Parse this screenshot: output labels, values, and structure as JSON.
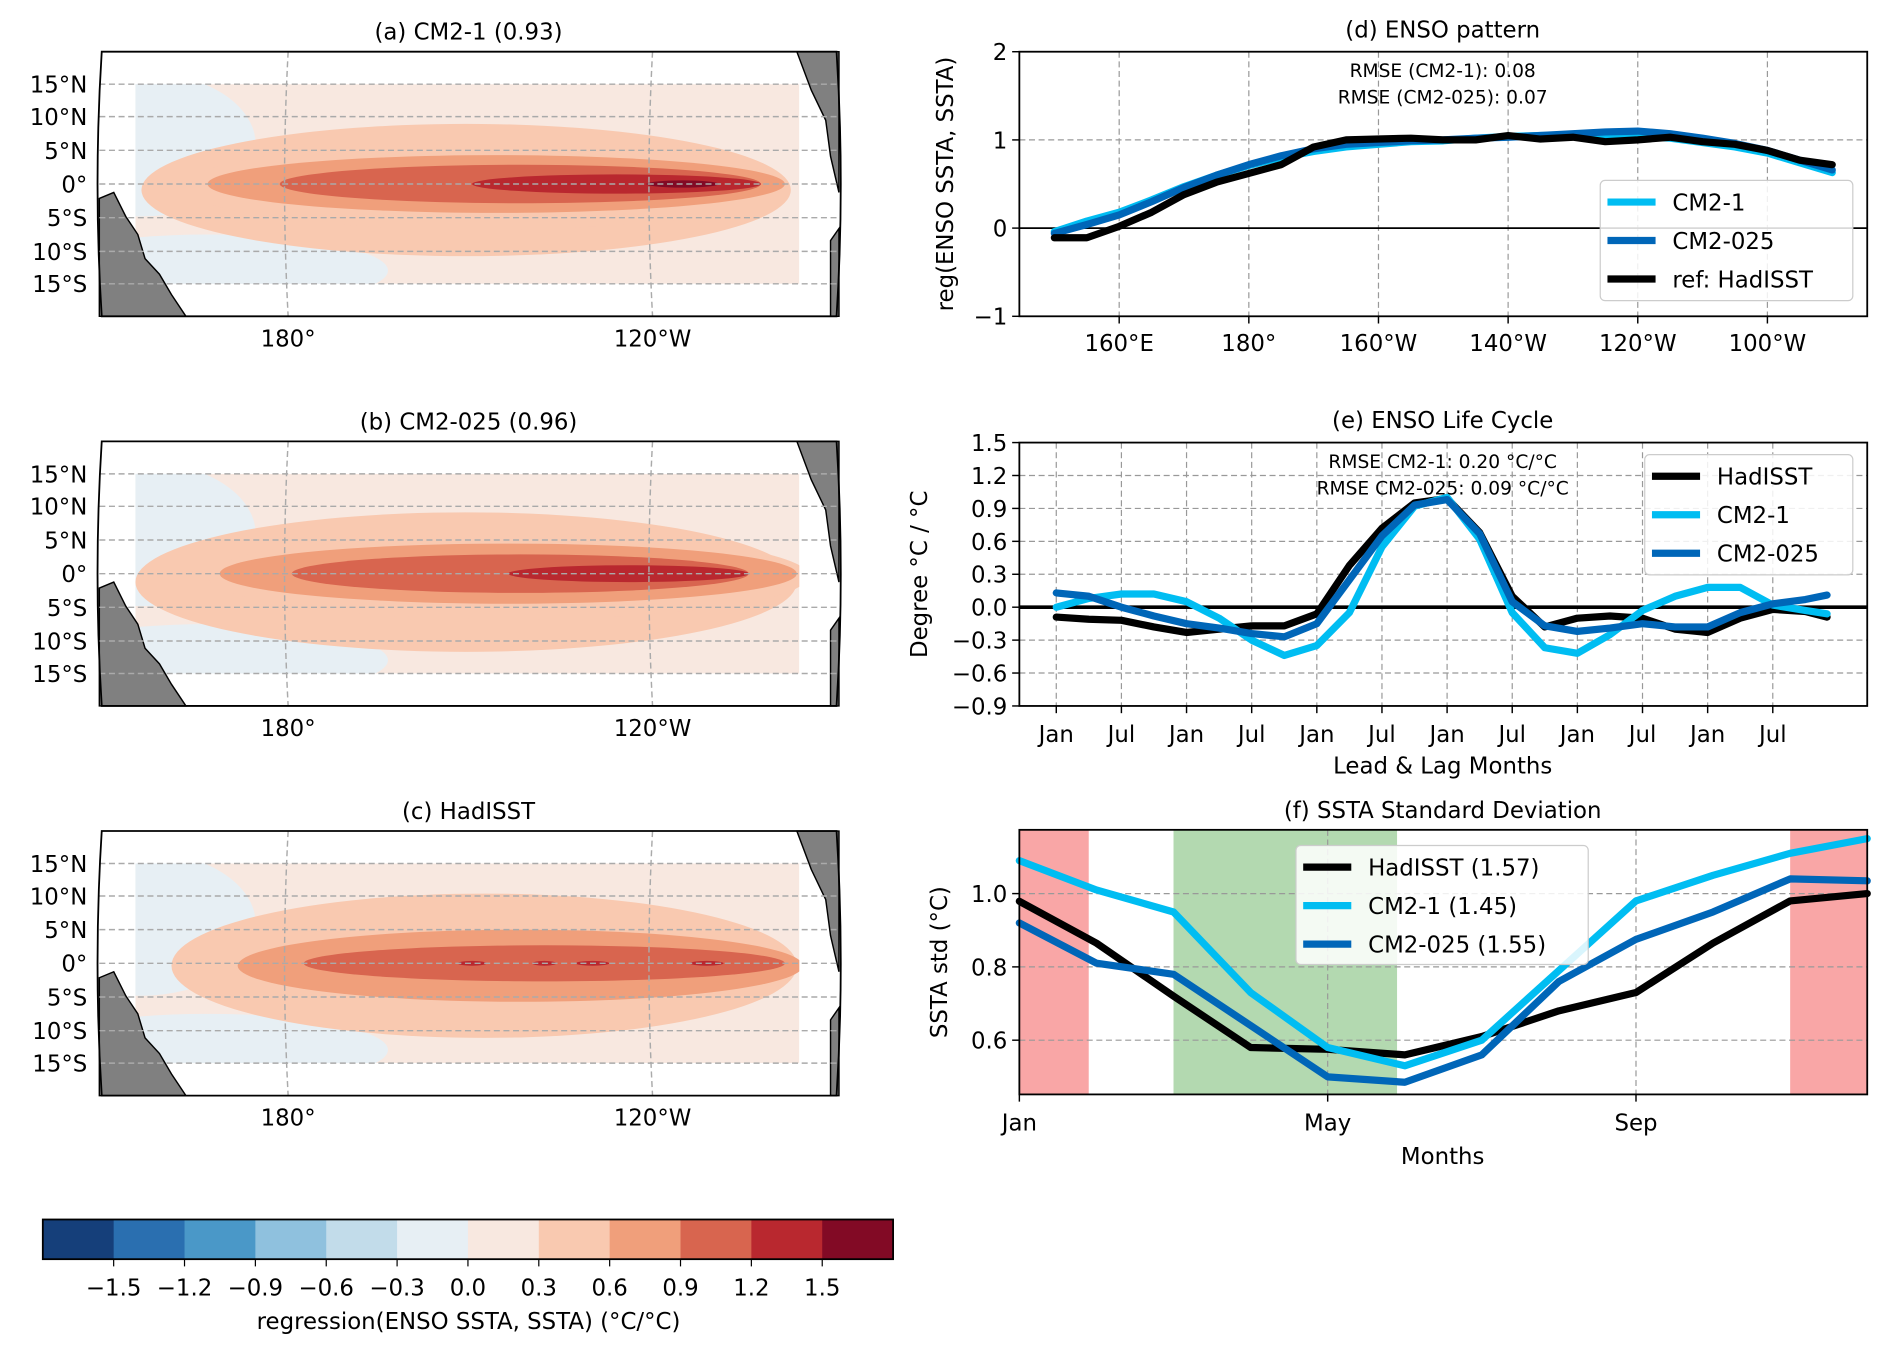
{
  "maps": [
    {
      "title": "(a) CM2-1 (0.93)"
    },
    {
      "title": "(b) CM2-025 (0.96)"
    },
    {
      "title": "(c) HadISST"
    }
  ],
  "map_axes": {
    "lat_labels": [
      "15°N",
      "10°N",
      "5°N",
      "0°",
      "5°S",
      "10°S",
      "15°S"
    ],
    "lon_labels": [
      "180°",
      "120°W"
    ]
  },
  "colorbar": {
    "label": "regression(ENSO SSTA, SSTA) (°C/°C)",
    "tick_labels": [
      "−1.5",
      "−1.2",
      "−0.9",
      "−0.6",
      "−0.3",
      "0.0",
      "0.3",
      "0.6",
      "0.9",
      "1.2",
      "1.5"
    ],
    "colors": [
      "#153f7a",
      "#2a6fb0",
      "#4a98c8",
      "#8fc1de",
      "#c2dcea",
      "#e7eff4",
      "#f8e8e0",
      "#f9c9b0",
      "#f09f7b",
      "#d8654f",
      "#b9282f",
      "#820a25"
    ]
  },
  "chart_data": [
    {
      "type": "line",
      "title": "(d) ENSO pattern",
      "ylabel": "reg(ENSO SSTA, SSTA)",
      "xlabel": "",
      "annotations": [
        "RMSE (CM2-1): 0.08",
        "RMSE (CM2-025): 0.07"
      ],
      "xlim": [
        144.6,
        275.4
      ],
      "ylim": [
        -1,
        2
      ],
      "xticks": [
        160,
        180,
        200,
        220,
        240,
        260
      ],
      "xtick_labels": [
        "160°E",
        "180°",
        "160°W",
        "140°W",
        "120°W",
        "100°W"
      ],
      "yticks": [
        -1,
        0,
        1,
        2
      ],
      "ytick_labels": [
        "−1",
        "0",
        "1",
        "2"
      ],
      "grid": true,
      "zero_line": true,
      "legend_position": "lower-right",
      "x": [
        150,
        155,
        160,
        165,
        170,
        175,
        180,
        185,
        190,
        195,
        200,
        205,
        210,
        215,
        220,
        225,
        230,
        235,
        240,
        245,
        250,
        255,
        260,
        265,
        270
      ],
      "series": [
        {
          "name": "CM2-1",
          "color": "#00bdf2",
          "values": [
            -0.04,
            0.08,
            0.18,
            0.32,
            0.47,
            0.6,
            0.71,
            0.8,
            0.87,
            0.92,
            0.95,
            0.98,
            0.99,
            1.02,
            1.04,
            1.05,
            1.05,
            1.05,
            1.04,
            1.02,
            0.97,
            0.92,
            0.85,
            0.74,
            0.63
          ]
        },
        {
          "name": "CM2-025",
          "color": "#0066b8",
          "values": [
            -0.06,
            0.04,
            0.15,
            0.3,
            0.46,
            0.6,
            0.72,
            0.82,
            0.9,
            0.95,
            0.97,
            0.99,
            1.0,
            1.02,
            1.03,
            1.05,
            1.07,
            1.09,
            1.1,
            1.07,
            1.02,
            0.96,
            0.88,
            0.77,
            0.66
          ]
        },
        {
          "name": "ref: HadISST",
          "color": "#000000",
          "values": [
            -0.11,
            -0.11,
            0.02,
            0.18,
            0.38,
            0.52,
            0.62,
            0.72,
            0.92,
            1.0,
            1.01,
            1.02,
            1.0,
            1.0,
            1.05,
            1.01,
            1.03,
            0.98,
            1.0,
            1.03,
            0.98,
            0.95,
            0.88,
            0.77,
            0.72
          ]
        }
      ]
    },
    {
      "type": "line",
      "title": "(e) ENSO Life Cycle",
      "ylabel": "Degree °C / °C",
      "xlabel": "Lead & Lag Months",
      "annotations": [
        "RMSE CM2-1: 0.20 °C/°C",
        "RMSE CM2-025: 0.09 °C/°C"
      ],
      "xlim": [
        -3.4,
        74.7
      ],
      "ylim": [
        -0.9,
        1.5
      ],
      "xticks": [
        0,
        6,
        12,
        18,
        24,
        30,
        36,
        42,
        48,
        54,
        60,
        66
      ],
      "xtick_labels": [
        "Jan",
        "Jul",
        "Jan",
        "Jul",
        "Jan",
        "Jul",
        "Jan",
        "Jul",
        "Jan",
        "Jul",
        "Jan",
        "Jul"
      ],
      "yticks": [
        -0.9,
        -0.6,
        -0.3,
        0.0,
        0.3,
        0.6,
        0.9,
        1.2,
        1.5
      ],
      "ytick_labels": [
        "−0.9",
        "−0.6",
        "−0.3",
        "0.0",
        "0.3",
        "0.6",
        "0.9",
        "1.2",
        "1.5"
      ],
      "grid": true,
      "zero_line": true,
      "legend_position": "upper-right",
      "x": [
        0,
        3,
        6,
        9,
        12,
        15,
        18,
        21,
        24,
        27,
        30,
        33,
        36,
        39,
        42,
        45,
        48,
        51,
        54,
        57,
        60,
        63,
        66,
        69,
        71
      ],
      "series": [
        {
          "name": "HadISST",
          "color": "#000000",
          "values": [
            -0.09,
            -0.11,
            -0.12,
            -0.18,
            -0.23,
            -0.2,
            -0.17,
            -0.17,
            -0.06,
            0.38,
            0.72,
            0.95,
            0.99,
            0.68,
            0.1,
            -0.18,
            -0.1,
            -0.08,
            -0.1,
            -0.2,
            -0.23,
            -0.1,
            -0.02,
            -0.04,
            -0.09
          ]
        },
        {
          "name": "CM2-1",
          "color": "#00bdf2",
          "values": [
            0.0,
            0.08,
            0.12,
            0.12,
            0.05,
            -0.1,
            -0.3,
            -0.44,
            -0.35,
            -0.05,
            0.55,
            0.92,
            1.0,
            0.62,
            -0.05,
            -0.37,
            -0.42,
            -0.25,
            -0.03,
            0.1,
            0.18,
            0.18,
            0.02,
            -0.03,
            -0.06
          ]
        },
        {
          "name": "CM2-025",
          "color": "#0066b8",
          "values": [
            0.13,
            0.1,
            0.0,
            -0.08,
            -0.15,
            -0.19,
            -0.24,
            -0.27,
            -0.15,
            0.25,
            0.65,
            0.93,
            0.98,
            0.67,
            0.05,
            -0.17,
            -0.22,
            -0.19,
            -0.15,
            -0.18,
            -0.18,
            -0.05,
            0.03,
            0.07,
            0.11
          ]
        }
      ]
    },
    {
      "type": "line",
      "title": "(f) SSTA Standard Deviation",
      "ylabel": "SSTA std (°C)",
      "xlabel": "Months",
      "annotations": [],
      "xlim": [
        0,
        11
      ],
      "ylim": [
        0.452,
        1.174
      ],
      "xticks": [
        0,
        4,
        8
      ],
      "xtick_labels": [
        "Jan",
        "May",
        "Sep"
      ],
      "yticks": [
        0.6,
        0.8,
        1.0
      ],
      "ytick_labels": [
        "0.6",
        "0.8",
        "1.0"
      ],
      "grid": true,
      "zero_line": false,
      "legend_position": "upper-center",
      "shaded_spans": [
        {
          "from": 0,
          "to": 0.9,
          "color": "#f9a6a6"
        },
        {
          "from": 2.0,
          "to": 4.9,
          "color": "#b3d9b0"
        },
        {
          "from": 10.0,
          "to": 11,
          "color": "#f9a6a6"
        }
      ],
      "x": [
        0,
        1,
        2,
        3,
        4,
        5,
        6,
        7,
        8,
        9,
        10,
        11
      ],
      "series": [
        {
          "name": "HadISST (1.57)",
          "color": "#000000",
          "values": [
            0.979,
            0.865,
            0.72,
            0.58,
            0.575,
            0.56,
            0.61,
            0.68,
            0.73,
            0.865,
            0.98,
            1.0
          ]
        },
        {
          "name": "CM2-1 (1.45)",
          "color": "#00bdf2",
          "values": [
            1.09,
            1.01,
            0.95,
            0.73,
            0.58,
            0.53,
            0.6,
            0.79,
            0.98,
            1.05,
            1.11,
            1.15
          ]
        },
        {
          "name": "CM2-025 (1.55)",
          "color": "#0066b8",
          "values": [
            0.92,
            0.81,
            0.78,
            0.64,
            0.5,
            0.485,
            0.56,
            0.76,
            0.875,
            0.95,
            1.04,
            1.035
          ]
        }
      ]
    }
  ]
}
